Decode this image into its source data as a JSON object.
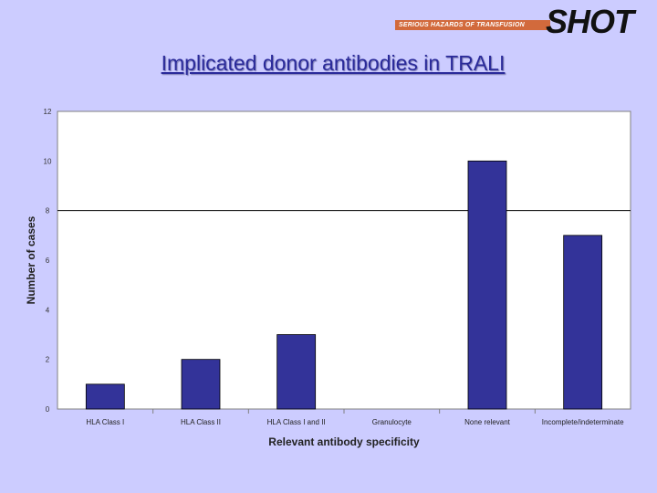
{
  "header": {
    "logo_text": "SHOT",
    "logo_tagline": "SERIOUS HAZARDS OF TRANSFUSION",
    "title": "Implicated donor antibodies in TRALI"
  },
  "colors": {
    "background": "#ccccff",
    "bar": "#333399",
    "plot_area": "#ffffff",
    "logo_bar": "#d26a3c"
  },
  "chart_data": {
    "type": "bar",
    "title": "Implicated donor antibodies in TRALI",
    "xlabel": "Relevant antibody specificity",
    "ylabel": "Number of cases",
    "ylim": [
      0,
      12
    ],
    "yticks": [
      0,
      2,
      4,
      6,
      8,
      10,
      12
    ],
    "grid": "horizontal line at 8",
    "legend": "none",
    "categories": [
      "HLA Class I",
      "HLA Class II",
      "HLA Class I and II",
      "Granulocyte",
      "None relevant",
      "Incomplete/indeterminate"
    ],
    "values": [
      1,
      2,
      3,
      0,
      10,
      7
    ]
  }
}
